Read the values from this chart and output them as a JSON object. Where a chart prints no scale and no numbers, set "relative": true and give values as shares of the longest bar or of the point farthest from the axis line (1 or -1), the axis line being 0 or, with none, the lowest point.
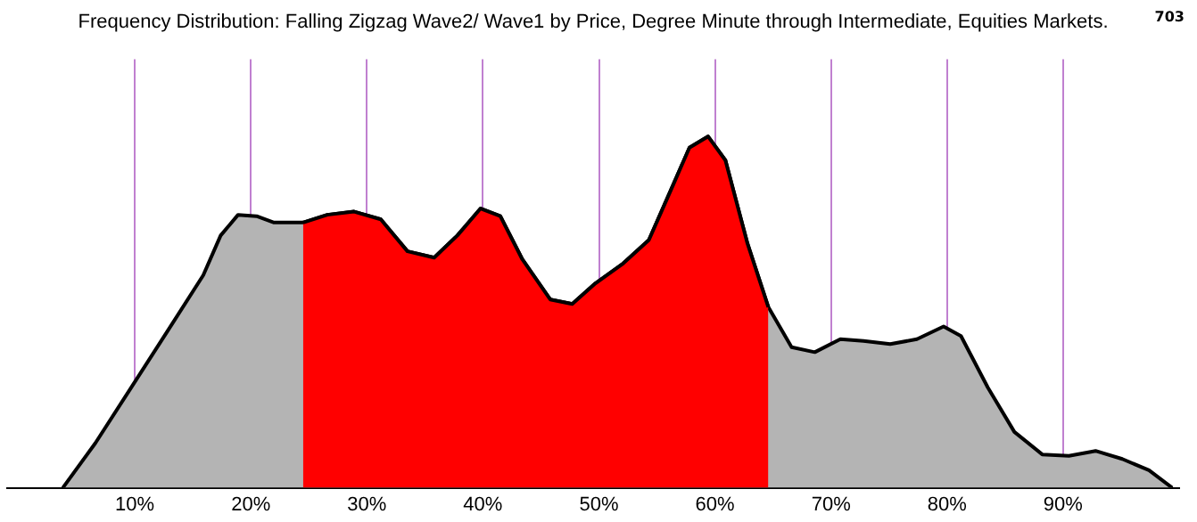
{
  "chart_data": {
    "type": "area",
    "title": "Frequency Distribution: Falling Zigzag Wave2/ Wave1 by Price, Degree Minute through Intermediate, Equities Markets.",
    "relative": true,
    "grid": "x",
    "legend": false,
    "marker": "none",
    "line_style": "solid",
    "xlim": [
      -1,
      100
    ],
    "xticks": [
      {
        "value": 10,
        "label": "10%"
      },
      {
        "value": 20,
        "label": "20%"
      },
      {
        "value": 30,
        "label": "30%"
      },
      {
        "value": 40,
        "label": "40%"
      },
      {
        "value": 50,
        "label": "50%"
      },
      {
        "value": 60,
        "label": "60%"
      },
      {
        "value": 70,
        "label": "70%"
      },
      {
        "value": 80,
        "label": "80%"
      },
      {
        "value": 90,
        "label": "90%"
      }
    ],
    "annotations": [
      "703"
    ],
    "series": [
      {
        "color": "#b4b4b4",
        "x": [
          3.8,
          6.6,
          9.7,
          12.8,
          15.9,
          17.4,
          18.9,
          20.5,
          22.0,
          24.5,
          26.6,
          28.9,
          31.2,
          33.5,
          35.8,
          37.8,
          39.8,
          41.5,
          43.4,
          45.8,
          47.7,
          49.7,
          52.0,
          54.3,
          56.3,
          57.8,
          59.4,
          60.9,
          62.8,
          64.6,
          66.6,
          68.6,
          70.8,
          72.8,
          75.1,
          77.4,
          79.7,
          81.2,
          83.5,
          85.8,
          88.2,
          90.5,
          92.8,
          95.1,
          97.4,
          99.4
        ],
        "values": [
          0,
          0.127,
          0.286,
          0.445,
          0.605,
          0.718,
          0.777,
          0.773,
          0.755,
          0.755,
          0.777,
          0.786,
          0.764,
          0.673,
          0.655,
          0.718,
          0.795,
          0.773,
          0.65,
          0.536,
          0.523,
          0.582,
          0.636,
          0.705,
          0.855,
          0.968,
          1,
          0.932,
          0.695,
          0.514,
          0.4,
          0.386,
          0.423,
          0.418,
          0.409,
          0.423,
          0.459,
          0.432,
          0.286,
          0.159,
          0.095,
          0.091,
          0.105,
          0.082,
          0.05,
          0
        ]
      },
      {
        "color": "#ff0000",
        "x": [
          24.5,
          26.6,
          28.9,
          31.2,
          33.5,
          35.8,
          37.8,
          39.8,
          41.5,
          43.4,
          45.8,
          47.7,
          49.7,
          52.0,
          54.3,
          56.3,
          57.8,
          59.4,
          60.9,
          62.8,
          64.6
        ],
        "values": [
          0.755,
          0.777,
          0.786,
          0.764,
          0.673,
          0.655,
          0.718,
          0.795,
          0.773,
          0.65,
          0.536,
          0.523,
          0.582,
          0.636,
          0.705,
          0.855,
          0.968,
          1,
          0.932,
          0.695,
          0.514
        ]
      }
    ]
  }
}
